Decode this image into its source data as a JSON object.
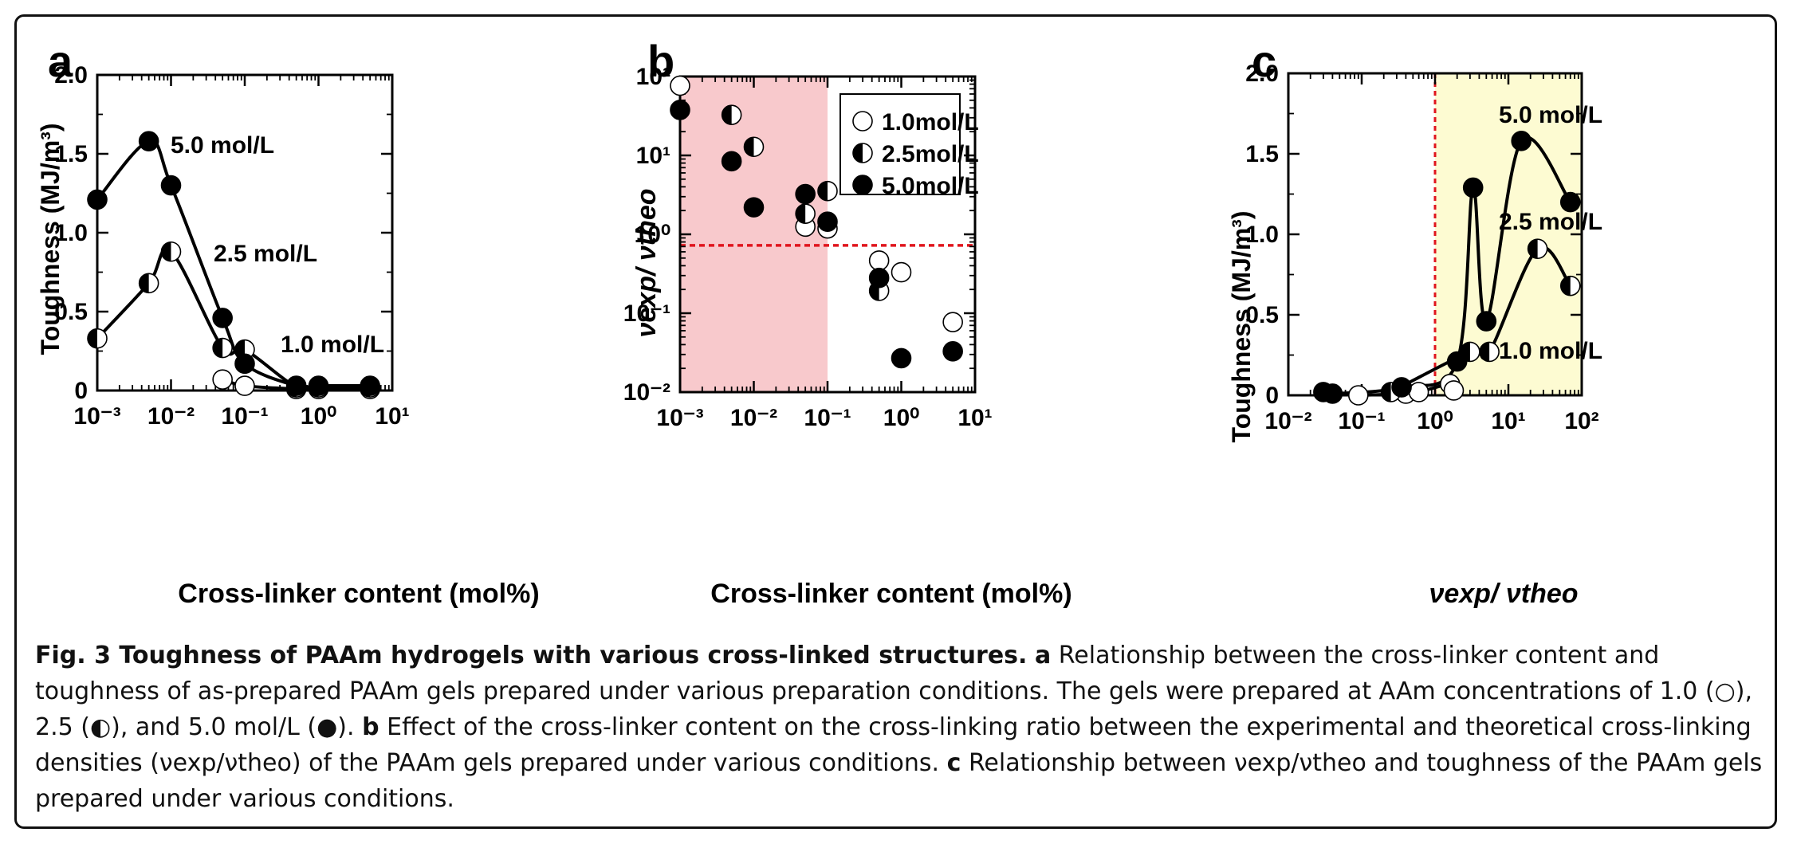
{
  "legend_symbols": {
    "open": "○",
    "half": "◐",
    "filled": "●"
  },
  "caption": {
    "figure_title": "Fig. 3 Toughness of PAAm hydrogels with various cross-linked structures.",
    "a_letter": "a",
    "a_text": "Relationship between the cross-linker content and toughness of as-prepared PAAm gels prepared under various preparation conditions. The gels were prepared at AAm concentrations of 1.0 (○), 2.5 (◐), and 5.0 mol/L (●).",
    "b_letter": "b",
    "b_text": "Effect of the cross-linker content on the cross-linking ratio between the experimental and theoretical cross-linking densities (νexp/νtheo) of the PAAm gels prepared under various conditions.",
    "c_letter": "c",
    "c_text": "Relationship between νexp/νtheo and toughness of the PAAm gels prepared under various conditions."
  },
  "chart_data": [
    {
      "panel_label": "a",
      "type": "line",
      "xlabel": "Cross-linker content (mol%)",
      "ylabel": "Toughness (MJ/m³)",
      "xscale": "log",
      "xlim": [
        0.001,
        10
      ],
      "ylim": [
        0,
        2.0
      ],
      "x_ticks": [
        "10⁻³",
        "10⁻²",
        "10⁻¹",
        "10⁰",
        "10¹"
      ],
      "y_ticks": [
        "0",
        "0.5",
        "1.0",
        "1.5",
        "2.0"
      ],
      "annotations": [
        "5.0 mol/L",
        "2.5 mol/L",
        "1.0 mol/L"
      ],
      "series": [
        {
          "name": "1.0 mol/L",
          "marker": "open",
          "x": [
            0.05,
            0.1,
            0.5,
            1.0,
            5.0
          ],
          "y": [
            0.07,
            0.03,
            0.01,
            0.01,
            0.01
          ]
        },
        {
          "name": "2.5 mol/L",
          "marker": "half",
          "x": [
            0.001,
            0.005,
            0.01,
            0.05,
            0.1,
            0.5,
            1.0,
            5.0
          ],
          "y": [
            0.33,
            0.68,
            0.88,
            0.27,
            0.26,
            0.02,
            0.02,
            0.02
          ]
        },
        {
          "name": "5.0 mol/L",
          "marker": "filled",
          "x": [
            0.001,
            0.005,
            0.01,
            0.05,
            0.1,
            0.5,
            1.0,
            5.0
          ],
          "y": [
            1.21,
            1.58,
            1.3,
            0.46,
            0.17,
            0.03,
            0.03,
            0.03
          ]
        }
      ]
    },
    {
      "panel_label": "b",
      "type": "scatter",
      "xlabel": "Cross-linker content (mol%)",
      "ylabel": "νexp/ νtheo",
      "xscale": "log",
      "yscale": "log",
      "xlim": [
        0.001,
        10
      ],
      "ylim": [
        0.01,
        200
      ],
      "x_ticks": [
        "10⁻³",
        "10⁻²",
        "10⁻¹",
        "10⁰",
        "10¹"
      ],
      "y_ticks": [
        "10⁻²",
        "10⁻¹",
        "10⁰",
        "10¹",
        "10²"
      ],
      "legend": [
        "1.0mol/L",
        "2.5mol/L",
        "5.0mol/L"
      ],
      "legend_position": "top-right",
      "shaded_region": {
        "x_from": 0.001,
        "x_to": 0.1,
        "color": "#f8c9cc"
      },
      "reference_line_y": 1.0,
      "reference_line_color": "#e0151d",
      "series": [
        {
          "name": "1.0mol/L",
          "marker": "open",
          "x": [
            0.001,
            0.05,
            0.1,
            0.5,
            1.0,
            5.0
          ],
          "y": [
            150,
            1.8,
            1.7,
            0.62,
            0.43,
            0.09
          ]
        },
        {
          "name": "2.5mol/L",
          "marker": "half",
          "x": [
            0.005,
            0.01,
            0.05,
            0.1,
            0.5
          ],
          "y": [
            60,
            22,
            2.7,
            5.5,
            0.24
          ]
        },
        {
          "name": "5.0mol/L",
          "marker": "filled",
          "x": [
            0.001,
            0.005,
            0.01,
            0.05,
            0.1,
            0.5,
            1.0,
            5.0
          ],
          "y": [
            70,
            14,
            3.3,
            5.0,
            2.1,
            0.36,
            0.029,
            0.036
          ]
        }
      ]
    },
    {
      "panel_label": "c",
      "type": "line",
      "xlabel": "νexp/ νtheo",
      "ylabel": "Toughness (MJ/m³)",
      "xscale": "log",
      "xlim": [
        0.01,
        100
      ],
      "ylim": [
        0,
        2.0
      ],
      "x_ticks": [
        "10⁻²",
        "10⁻¹",
        "10⁰",
        "10¹",
        "10²"
      ],
      "y_ticks": [
        "0",
        "0.5",
        "1.0",
        "1.5",
        "2.0"
      ],
      "annotations": [
        "5.0 mol/L",
        "2.5 mol/L",
        "1.0 mol/L"
      ],
      "shaded_region": {
        "x_from": 1.0,
        "x_to": 100,
        "color": "#fdfbd2"
      },
      "reference_line_x": 1.0,
      "reference_line_color": "#e0151d",
      "series": [
        {
          "name": "1.0 mol/L",
          "marker": "open",
          "x": [
            0.09,
            0.4,
            0.6,
            1.6,
            1.8
          ],
          "y": [
            0.0,
            0.01,
            0.02,
            0.07,
            0.03
          ]
        },
        {
          "name": "2.5 mol/L",
          "marker": "half",
          "x": [
            0.25,
            3.0,
            5.5,
            25,
            70
          ],
          "y": [
            0.02,
            0.27,
            0.27,
            0.91,
            0.68
          ]
        },
        {
          "name": "5.0 mol/L",
          "marker": "filled",
          "x": [
            0.03,
            0.04,
            0.35,
            2.0,
            3.3,
            5.0,
            15,
            70
          ],
          "y": [
            0.02,
            0.01,
            0.05,
            0.21,
            1.29,
            0.46,
            1.58,
            1.2
          ]
        }
      ]
    }
  ]
}
